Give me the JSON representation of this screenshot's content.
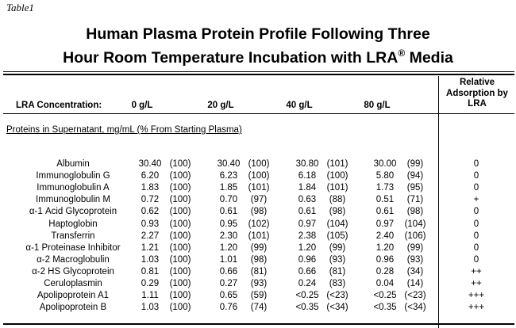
{
  "caption": "Table1",
  "title": {
    "line1": "Human Plasma Protein Profile Following Three",
    "line2": "Hour Room Temperature Incubation with LRA",
    "line2_sup": "®",
    "line2_end": " Media"
  },
  "header": {
    "concentration_label": "LRA  Concentration:",
    "concentrations": [
      "0 g/L",
      "20 g/L",
      "40 g/L",
      "80 g/L"
    ],
    "relative_adsorption": [
      "Relative",
      "Adsorption by",
      "LRA"
    ]
  },
  "section_label": "Proteins in Supernatant, mg/mL (% From Starting Plasma)",
  "rows": [
    {
      "name": "Albumin",
      "vals": [
        [
          "30.40",
          "(100)"
        ],
        [
          "30.40",
          "(100)"
        ],
        [
          "30.80",
          "(101)"
        ],
        [
          "30.00",
          "(99)"
        ]
      ],
      "ra": "0"
    },
    {
      "name": "Immunoglobulin G",
      "vals": [
        [
          "6.20",
          "(100)"
        ],
        [
          "6.23",
          "(100)"
        ],
        [
          "6.18",
          "(100)"
        ],
        [
          "5.80",
          "(94)"
        ]
      ],
      "ra": "0"
    },
    {
      "name": "Immunoglobulin A",
      "vals": [
        [
          "1.83",
          "(100)"
        ],
        [
          "1.85",
          "(101)"
        ],
        [
          "1.84",
          "(101)"
        ],
        [
          "1.73",
          "(95)"
        ]
      ],
      "ra": "0"
    },
    {
      "name": "Immunoglobulin M",
      "vals": [
        [
          "0.72",
          "(100)"
        ],
        [
          "0.70",
          "(97)"
        ],
        [
          "0.63",
          "(88)"
        ],
        [
          "0.51",
          "(71)"
        ]
      ],
      "ra": "+"
    },
    {
      "name": "α-1 Acid Glycoprotein",
      "vals": [
        [
          "0.62",
          "(100)"
        ],
        [
          "0.61",
          "(98)"
        ],
        [
          "0.61",
          "(98)"
        ],
        [
          "0.61",
          "(98)"
        ]
      ],
      "ra": "0"
    },
    {
      "name": "Haptoglobin",
      "vals": [
        [
          "0.93",
          "(100)"
        ],
        [
          "0.95",
          "(102)"
        ],
        [
          "0.97",
          "(104)"
        ],
        [
          "0.97",
          "(104)"
        ]
      ],
      "ra": "0"
    },
    {
      "name": "Transferrin",
      "vals": [
        [
          "2.27",
          "(100)"
        ],
        [
          "2.30",
          "(101)"
        ],
        [
          "2.38",
          "(105)"
        ],
        [
          "2.40",
          "(106)"
        ]
      ],
      "ra": "0"
    },
    {
      "name": "α-1 Proteinase Inhibitor",
      "vals": [
        [
          "1.21",
          "(100)"
        ],
        [
          "1.20",
          "(99)"
        ],
        [
          "1.20",
          "(99)"
        ],
        [
          "1.20",
          "(99)"
        ]
      ],
      "ra": "0"
    },
    {
      "name": "α-2 Macroglobulin",
      "vals": [
        [
          "1.03",
          "(100)"
        ],
        [
          "1.01",
          "(98)"
        ],
        [
          "0.96",
          "(93)"
        ],
        [
          "0.96",
          "(93)"
        ]
      ],
      "ra": "0"
    },
    {
      "name": "α-2 HS Glycoprotein",
      "vals": [
        [
          "0.81",
          "(100)"
        ],
        [
          "0.66",
          "(81)"
        ],
        [
          "0.66",
          "(81)"
        ],
        [
          "0.28",
          "(34)"
        ]
      ],
      "ra": "++"
    },
    {
      "name": "Ceruloplasmin",
      "vals": [
        [
          "0.29",
          "(100)"
        ],
        [
          "0.27",
          "(93)"
        ],
        [
          "0.24",
          "(83)"
        ],
        [
          "0.04",
          "(14)"
        ]
      ],
      "ra": "++"
    },
    {
      "name": "Apolipoprotein A1",
      "vals": [
        [
          "1.11",
          "(100)"
        ],
        [
          "0.65",
          "(59)"
        ],
        [
          "<0.25",
          "(<23)"
        ],
        [
          "<0.25",
          "(<23)"
        ]
      ],
      "ra": "+++"
    },
    {
      "name": "Apolipoprotein B",
      "vals": [
        [
          "1.03",
          "(100)"
        ],
        [
          "0.76",
          "(74)"
        ],
        [
          "<0.35",
          "(<34)"
        ],
        [
          "<0.35",
          "(<34)"
        ]
      ],
      "ra": "+++"
    }
  ]
}
